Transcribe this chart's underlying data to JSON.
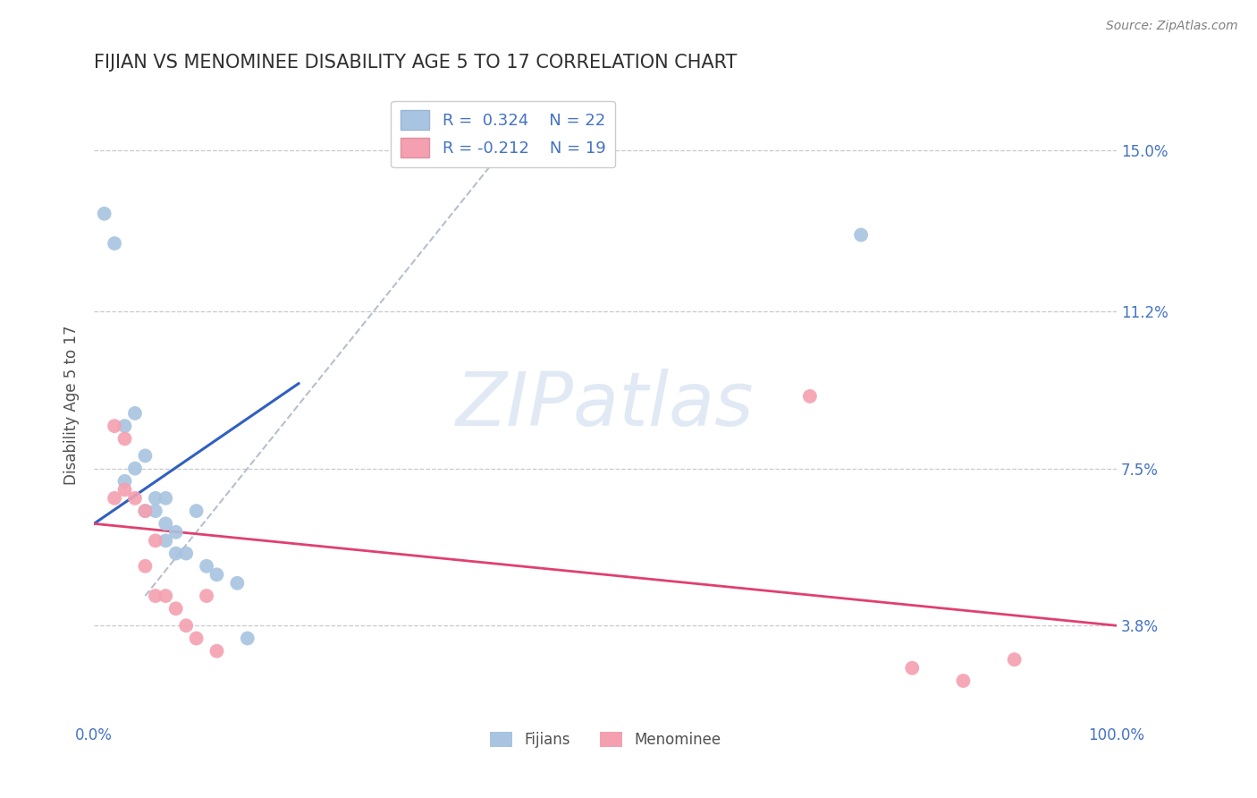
{
  "title": "FIJIAN VS MENOMINEE DISABILITY AGE 5 TO 17 CORRELATION CHART",
  "source": "Source: ZipAtlas.com",
  "xlabel": "",
  "ylabel": "Disability Age 5 to 17",
  "xlim": [
    0,
    100
  ],
  "ylim": [
    1.5,
    16.5
  ],
  "yticks": [
    3.8,
    7.5,
    11.2,
    15.0
  ],
  "xticks": [
    0,
    100
  ],
  "xticklabels": [
    "0.0%",
    "100.0%"
  ],
  "yticklabels": [
    "3.8%",
    "7.5%",
    "11.2%",
    "15.0%"
  ],
  "fijian_color": "#a8c4e0",
  "menominee_color": "#f4a0b0",
  "fijian_line_color": "#3060c0",
  "menominee_line_color": "#e04070",
  "diag_line_color": "#b0b8c8",
  "legend_fijian_R": "0.324",
  "legend_fijian_N": "22",
  "legend_menominee_R": "-0.212",
  "legend_menominee_N": "19",
  "fijian_x": [
    1,
    2,
    3,
    3,
    4,
    4,
    5,
    5,
    6,
    6,
    7,
    7,
    7,
    8,
    8,
    9,
    10,
    11,
    12,
    14,
    15,
    75
  ],
  "fijian_y": [
    13.5,
    12.8,
    8.5,
    7.2,
    8.8,
    7.5,
    7.8,
    6.5,
    6.8,
    6.5,
    6.2,
    5.8,
    6.8,
    6.0,
    5.5,
    5.5,
    6.5,
    5.2,
    5.0,
    4.8,
    3.5,
    13.0
  ],
  "menominee_x": [
    2,
    2,
    3,
    3,
    4,
    5,
    5,
    6,
    6,
    7,
    8,
    9,
    10,
    11,
    12,
    70,
    80,
    85,
    90
  ],
  "menominee_y": [
    8.5,
    6.8,
    8.2,
    7.0,
    6.8,
    6.5,
    5.2,
    5.8,
    4.5,
    4.5,
    4.2,
    3.8,
    3.5,
    4.5,
    3.2,
    9.2,
    2.8,
    2.5,
    3.0
  ],
  "fijian_line_x0": 0,
  "fijian_line_x1": 20,
  "fijian_line_y0": 6.2,
  "fijian_line_y1": 9.5,
  "menominee_line_x0": 0,
  "menominee_line_x1": 100,
  "menominee_line_y0": 6.2,
  "menominee_line_y1": 3.8,
  "diag_x0": 5,
  "diag_x1": 40,
  "diag_y0": 4.5,
  "diag_y1": 15.0,
  "watermark": "ZIPatlas",
  "background_color": "#ffffff",
  "grid_color": "#c8c8d0",
  "title_color": "#303030",
  "axis_label_color": "#505050",
  "tick_color": "#4472c4"
}
